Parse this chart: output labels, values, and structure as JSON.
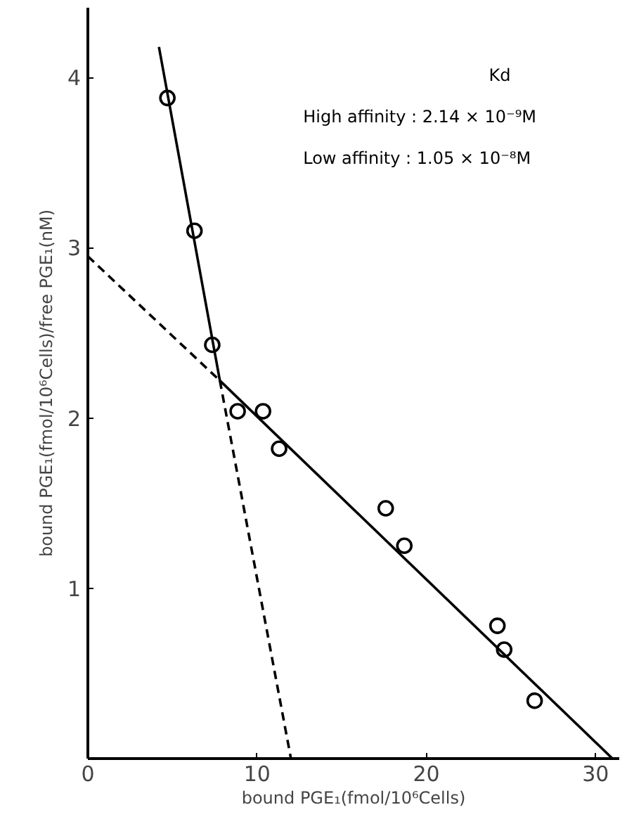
{
  "chart_data": {
    "type": "scatter",
    "xlabel": "bound PGE₁(fmol/10⁶Cells)",
    "ylabel": "bound PGE₁(fmol/10⁶Cells)/free PGE₁(nM)",
    "annotations": [
      "Kd",
      "High affinity : 2.14 × 10⁻⁹M",
      "Low affinity : 1.05 × 10⁻⁸M"
    ],
    "xlim": [
      0,
      31.4
    ],
    "ylim": [
      0,
      4.41
    ],
    "xticks": [
      0,
      10,
      20,
      30
    ],
    "yticks": [
      1,
      2,
      3,
      4
    ],
    "grid": false,
    "series": [
      {
        "color": "#000000",
        "marker": "circle",
        "x": [
          4.7,
          6.3,
          7.35,
          8.85,
          10.35,
          11.3,
          17.6,
          18.7,
          24.2,
          24.6,
          26.4
        ],
        "values": [
          3.88,
          3.1,
          2.43,
          2.04,
          2.04,
          1.82,
          1.47,
          1.25,
          0.78,
          0.64,
          0.34
        ]
      },
      {
        "type": "line",
        "color": "#000000",
        "line_style": "solid",
        "x": [
          4.2,
          7.8,
          31.0
        ],
        "values": [
          4.18,
          2.22,
          0
        ]
      },
      {
        "type": "line",
        "color": "#000000",
        "line_style": "dashed",
        "x": [
          0,
          7.8
        ],
        "values": [
          2.95,
          2.22
        ]
      },
      {
        "type": "line",
        "color": "#000000",
        "line_style": "dashed",
        "x": [
          7.8,
          12.0
        ],
        "values": [
          2.22,
          0
        ]
      }
    ]
  }
}
